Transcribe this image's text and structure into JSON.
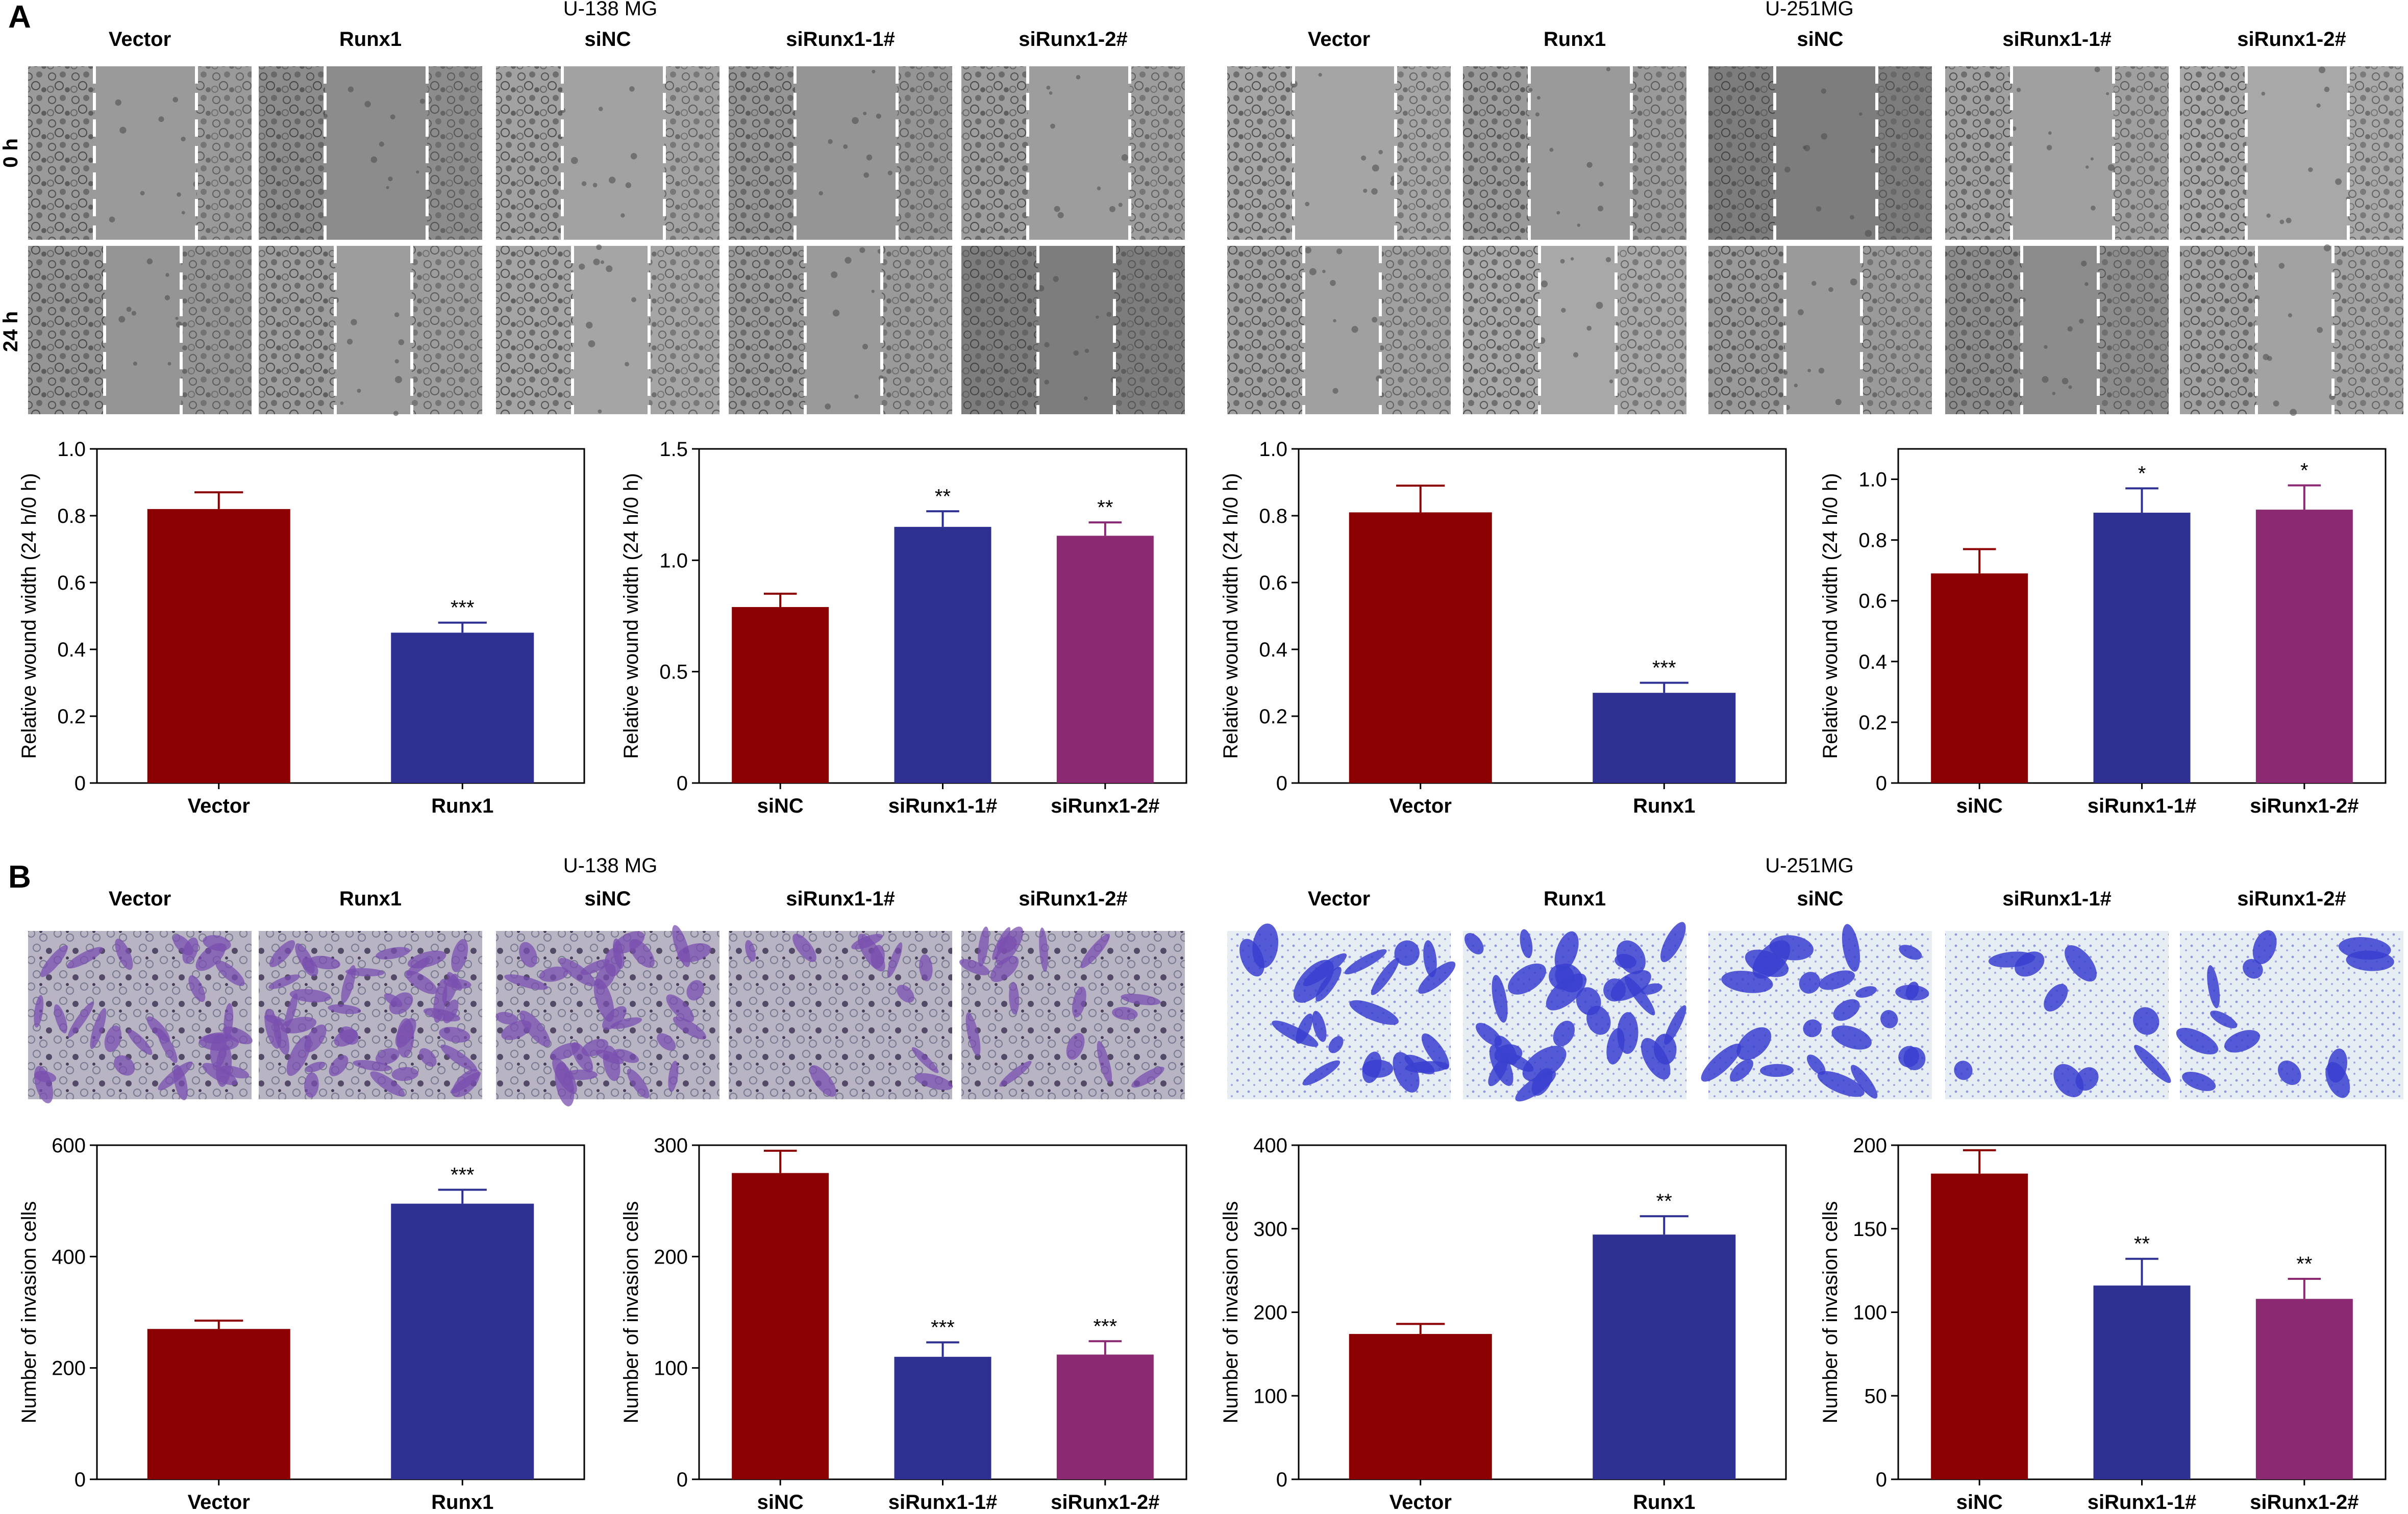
{
  "panel_labels": {
    "a": "A",
    "b": "B"
  },
  "cell_lines": {
    "u138": "U-138 MG",
    "u251": "U-251MG"
  },
  "row_labels": [
    "0 h",
    "24 h"
  ],
  "groups_over": [
    "Vector",
    "Runx1"
  ],
  "groups_si": [
    "siNC",
    "siRunx1-1#",
    "siRunx1-2#"
  ],
  "colors": {
    "dark_red": "#8B0000",
    "blue": "#2E3192",
    "purple": "#8B2A72",
    "stain_purple": "#7A4FB0",
    "stain_blue": "#3A3FCF"
  },
  "chart_data": [
    {
      "id": "A1",
      "type": "bar",
      "categories": [
        "Vector",
        "Runx1"
      ],
      "values": [
        0.82,
        0.45
      ],
      "errors": [
        0.05,
        0.03
      ],
      "sig": [
        "",
        "***"
      ],
      "ylabel": "Relative wound width (24 h/0 h)",
      "ylim": [
        0,
        1.0
      ],
      "yticks": [
        "0",
        "0.2",
        "0.4",
        "0.6",
        "0.8",
        "1.0"
      ],
      "colors": [
        "#8B0000",
        "#2E3192"
      ]
    },
    {
      "id": "A2",
      "type": "bar",
      "categories": [
        "siNC",
        "siRunx1-1#",
        "siRunx1-2#"
      ],
      "values": [
        0.79,
        1.15,
        1.11
      ],
      "errors": [
        0.06,
        0.07,
        0.06
      ],
      "sig": [
        "",
        "**",
        "**"
      ],
      "ylabel": "Relative wound width (24 h/0 h)",
      "ylim": [
        0,
        1.5
      ],
      "yticks": [
        "0",
        "0.5",
        "1.0",
        "1.5"
      ],
      "colors": [
        "#8B0000",
        "#2E3192",
        "#8B2A72"
      ]
    },
    {
      "id": "A3",
      "type": "bar",
      "categories": [
        "Vector",
        "Runx1"
      ],
      "values": [
        0.81,
        0.27
      ],
      "errors": [
        0.08,
        0.03
      ],
      "sig": [
        "",
        "***"
      ],
      "ylabel": "Relative wound width (24 h/0 h)",
      "ylim": [
        0,
        1.0
      ],
      "yticks": [
        "0",
        "0.2",
        "0.4",
        "0.6",
        "0.8",
        "1.0"
      ],
      "colors": [
        "#8B0000",
        "#2E3192"
      ]
    },
    {
      "id": "A4",
      "type": "bar",
      "categories": [
        "siNC",
        "siRunx1-1#",
        "siRunx1-2#"
      ],
      "values": [
        0.69,
        0.89,
        0.9
      ],
      "errors": [
        0.08,
        0.08,
        0.08
      ],
      "sig": [
        "",
        "*",
        "*"
      ],
      "ylabel": "Relative wound width (24 h/0 h)",
      "ylim": [
        0,
        1.1
      ],
      "yticks": [
        "0",
        "0.2",
        "0.4",
        "0.6",
        "0.8",
        "1.0"
      ],
      "colors": [
        "#8B0000",
        "#2E3192",
        "#8B2A72"
      ]
    },
    {
      "id": "B1",
      "type": "bar",
      "categories": [
        "Vector",
        "Runx1"
      ],
      "values": [
        270,
        495
      ],
      "errors": [
        15,
        25
      ],
      "sig": [
        "",
        "***"
      ],
      "ylabel": "Number of invasion cells",
      "ylim": [
        0,
        600
      ],
      "yticks": [
        "0",
        "200",
        "400",
        "600"
      ],
      "colors": [
        "#8B0000",
        "#2E3192"
      ]
    },
    {
      "id": "B2",
      "type": "bar",
      "categories": [
        "siNC",
        "siRunx1-1#",
        "siRunx1-2#"
      ],
      "values": [
        275,
        110,
        112
      ],
      "errors": [
        20,
        13,
        12
      ],
      "sig": [
        "",
        "***",
        "***"
      ],
      "ylabel": "Number of invasion cells",
      "ylim": [
        0,
        300
      ],
      "yticks": [
        "0",
        "100",
        "200",
        "300"
      ],
      "colors": [
        "#8B0000",
        "#2E3192",
        "#8B2A72"
      ]
    },
    {
      "id": "B3",
      "type": "bar",
      "categories": [
        "Vector",
        "Runx1"
      ],
      "values": [
        174,
        293
      ],
      "errors": [
        12,
        22
      ],
      "sig": [
        "",
        "**"
      ],
      "ylabel": "Number of invasion cells",
      "ylim": [
        0,
        400
      ],
      "yticks": [
        "0",
        "100",
        "200",
        "300",
        "400"
      ],
      "colors": [
        "#8B0000",
        "#2E3192"
      ]
    },
    {
      "id": "B4",
      "type": "bar",
      "categories": [
        "siNC",
        "siRunx1-1#",
        "siRunx1-2#"
      ],
      "values": [
        183,
        116,
        108
      ],
      "errors": [
        14,
        16,
        12
      ],
      "sig": [
        "",
        "**",
        "**"
      ],
      "ylabel": "Number of invasion cells",
      "ylim": [
        0,
        200
      ],
      "yticks": [
        "0",
        "50",
        "100",
        "150",
        "200"
      ],
      "colors": [
        "#8B0000",
        "#2E3192",
        "#8B2A72"
      ]
    }
  ]
}
